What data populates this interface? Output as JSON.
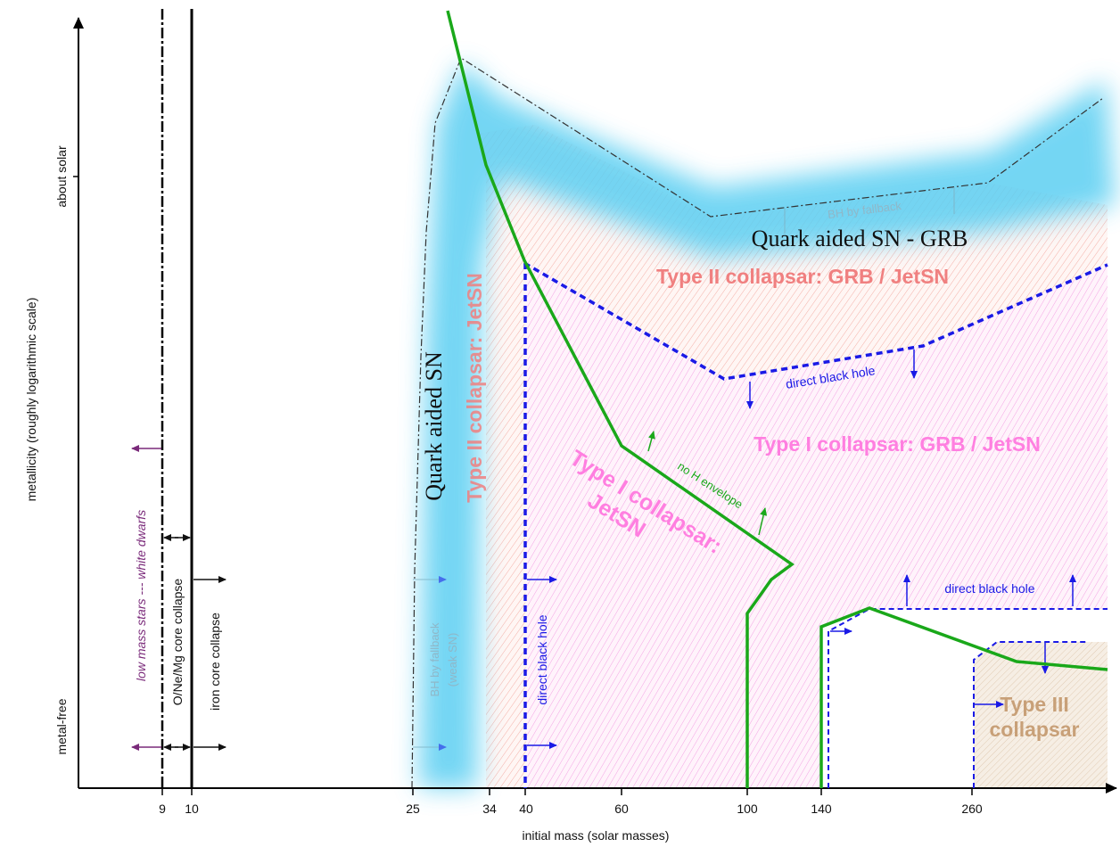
{
  "axes": {
    "x_label": "initial mass (solar masses)",
    "y_label": "metallicity (roughly logarithmic scale)",
    "x_ticks": [
      "9",
      "10",
      "25",
      "34",
      "40",
      "60",
      "100",
      "140",
      "260"
    ],
    "y_tick_top": "about solar",
    "y_tick_bottom": "metal-free"
  },
  "regions": {
    "quark_sn_grb": "Quark aided SN - GRB",
    "quark_sn": "Quark aided SN",
    "type2_grb": "Type II collapsar: GRB / JetSN",
    "type2_jetsn": "Type II collapsar: JetSN",
    "type1_grb": "Type I collapsar: GRB / JetSN",
    "type1_jetsn_line1": "Type I collapsar:",
    "type1_jetsn_line2": "JetSN",
    "type3_line1": "Type III",
    "type3_line2": "collapsar"
  },
  "labels": {
    "bh_fallback_top": "BH by fallback",
    "bh_fallback_left": "BH by fallback",
    "weak_sn": "(weak SN)",
    "direct_bh_upper": "direct black hole",
    "direct_bh_right": "direct black hole",
    "direct_bh_vertical": "direct black hole",
    "no_h_envelope": "no H envelope",
    "low_mass_stars": "low mass stars --- white dwarfs",
    "onemg": "O/Ne/Mg core collapse",
    "iron_core": "iron core collapse"
  },
  "colors": {
    "green_line": "#1aa81a",
    "blue_dashed": "#1a1ae6",
    "quark_glow": "#5ccff2",
    "type2_text": "#f08080",
    "type1_text": "#ff7fe0",
    "type3_text": "#c8a078",
    "purple_arrow": "#7a2a7a"
  }
}
